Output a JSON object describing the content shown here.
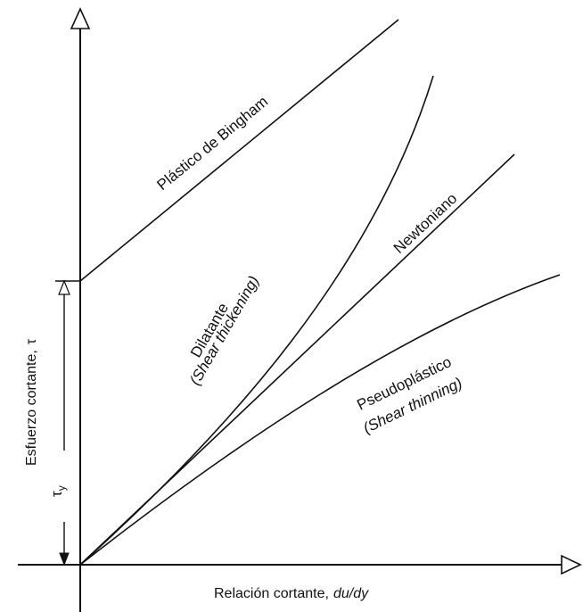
{
  "axes": {
    "y_label": "Esfuerzo cortante,",
    "y_symbol": "τ",
    "x_label": "Relación cortante,",
    "x_symbol": "du/dy"
  },
  "yield_stress": {
    "symbol": "τ",
    "subscript": "y"
  },
  "curves": {
    "bingham": {
      "label": "Plástico de Bingham"
    },
    "dilatant": {
      "label": "Dilatante",
      "sublabel": "(Shear thickening)"
    },
    "newtonian": {
      "label": "Newtoniano"
    },
    "pseudoplastic": {
      "label": "Pseudoplástico",
      "sublabel": "(Shear thinning)"
    }
  }
}
